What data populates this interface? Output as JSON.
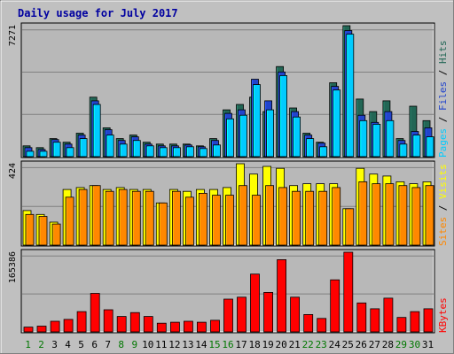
{
  "chart_data": {
    "type": "bar",
    "title": "Daily usage for July 2017",
    "categories": [
      "1",
      "2",
      "3",
      "4",
      "5",
      "6",
      "7",
      "8",
      "9",
      "10",
      "11",
      "12",
      "13",
      "14",
      "15",
      "16",
      "17",
      "18",
      "19",
      "20",
      "21",
      "22",
      "23",
      "24",
      "25",
      "26",
      "27",
      "28",
      "29",
      "30",
      "31"
    ],
    "weekend_days": [
      "1",
      "2",
      "8",
      "9",
      "15",
      "16",
      "22",
      "23",
      "29",
      "30"
    ],
    "colors": {
      "background": "#c0c0c0",
      "plot_bg": "#b8b8b8",
      "title": "#0000a0",
      "hits": "#226655",
      "files": "#2244cc",
      "pages": "#00ccff",
      "visits": "#ffff00",
      "sites": "#ff8800",
      "kbytes": "#ff0000",
      "weekday_label": "#000000",
      "weekend_label": "#007700"
    },
    "panels": [
      {
        "id": "hits-files-pages",
        "ymax_label": "7271",
        "ylim": [
          0,
          7271
        ],
        "legend": [
          {
            "text": "Pages",
            "color": "#00ccff"
          },
          {
            "text": "Files",
            "color": "#2244cc"
          },
          {
            "text": "Hits",
            "color": "#226655"
          }
        ],
        "series": [
          {
            "name": "Hits",
            "color": "#226655",
            "values": [
              600,
              500,
              1000,
              800,
              1300,
              3300,
              1600,
              1000,
              1200,
              800,
              700,
              700,
              700,
              600,
              1000,
              2600,
              2900,
              3300,
              2500,
              5000,
              2700,
              1300,
              800,
              4100,
              7271,
              3200,
              2500,
              3100,
              1000,
              2800,
              2000
            ]
          },
          {
            "name": "Files",
            "color": "#2244cc",
            "values": [
              500,
              400,
              950,
              700,
              1200,
              3100,
              1500,
              900,
              1100,
              700,
              600,
              600,
              650,
              550,
              900,
              2400,
              2600,
              4300,
              3100,
              4700,
              2500,
              1200,
              750,
              3900,
              7000,
              2300,
              1900,
              2500,
              900,
              1400,
              1600
            ]
          },
          {
            "name": "Pages",
            "color": "#00ccff",
            "values": [
              300,
              300,
              800,
              500,
              1000,
              2900,
              1200,
              700,
              900,
              600,
              500,
              500,
              550,
              450,
              650,
              2100,
              2300,
              4000,
              2600,
              4500,
              2200,
              1000,
              550,
              3700,
              6800,
              2000,
              1800,
              2000,
              700,
              1200,
              1100
            ]
          }
        ]
      },
      {
        "id": "visits-sites",
        "ymax_label": "424",
        "ylim": [
          0,
          424
        ],
        "legend": [
          {
            "text": "Sites",
            "color": "#ff8800"
          },
          {
            "text": "Visits",
            "color": "#ffff00"
          }
        ],
        "series": [
          {
            "name": "Visits",
            "color": "#ffff00",
            "values": [
              180,
              160,
              120,
              290,
              300,
              310,
              290,
              300,
              290,
              290,
              220,
              290,
              280,
              290,
              290,
              300,
              424,
              370,
              410,
              400,
              310,
              320,
              320,
              320,
              190,
              400,
              370,
              360,
              330,
              320,
              330
            ]
          },
          {
            "name": "Sites",
            "color": "#ff8800",
            "values": [
              160,
              150,
              110,
              250,
              290,
              310,
              280,
              290,
              280,
              280,
              220,
              280,
              250,
              270,
              260,
              260,
              310,
              260,
              310,
              300,
              280,
              280,
              280,
              300,
              190,
              330,
              320,
              320,
              310,
              300,
              310
            ]
          }
        ]
      },
      {
        "id": "kbytes",
        "ymax_label": "165386",
        "ylim": [
          0,
          165386
        ],
        "legend": [
          {
            "text": "KBytes",
            "color": "#ff0000"
          }
        ],
        "series": [
          {
            "name": "KBytes",
            "color": "#ff0000",
            "values": [
              10000,
              12000,
              22000,
              26000,
              42000,
              80000,
              46000,
              32000,
              40000,
              32000,
              18000,
              20000,
              22000,
              20000,
              24000,
              68000,
              72000,
              120000,
              82000,
              150000,
              72000,
              36000,
              28000,
              108000,
              165386,
              60000,
              48000,
              70000,
              30000,
              42000,
              48000
            ]
          }
        ]
      }
    ]
  }
}
